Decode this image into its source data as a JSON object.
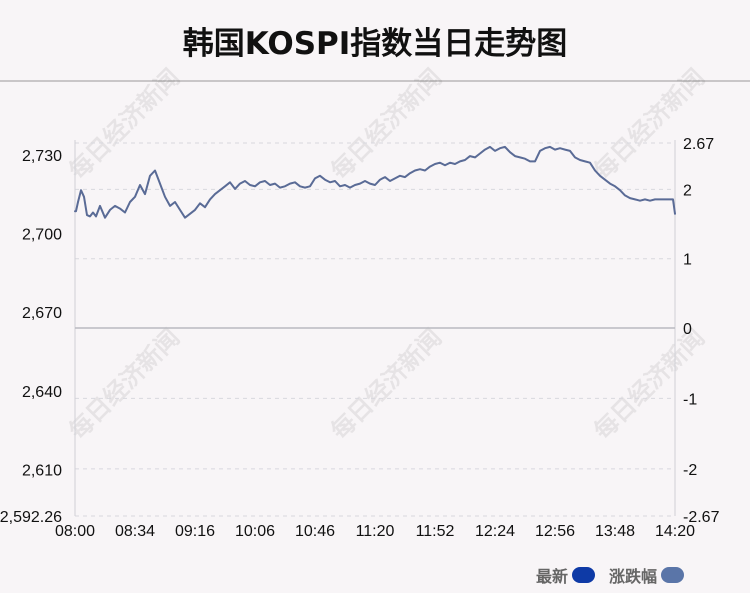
{
  "title": "韩国KOSPI指数当日走势图",
  "watermark": "每日经济新闻",
  "legend": {
    "latest_label": "最新",
    "latest_color": "#0e3aa6",
    "change_label": "涨跌幅",
    "change_color": "#5a75a8"
  },
  "chart_data": {
    "type": "line",
    "title": "韩国KOSPI指数当日走势图",
    "x_ticks": [
      "08:00",
      "08:34",
      "09:16",
      "10:06",
      "10:46",
      "11:20",
      "11:52",
      "12:24",
      "12:56",
      "13:48",
      "14:20"
    ],
    "y_left_ticks": [
      "2,730",
      "2,700",
      "2,670",
      "2,640",
      "2,610",
      "2,592.26"
    ],
    "y_left_values": [
      2730,
      2700,
      2670,
      2640,
      2610,
      2592.26
    ],
    "y_right_ticks": [
      "2.67",
      "2",
      "1",
      "0",
      "-1",
      "-2",
      "-2.67"
    ],
    "y_right_values": [
      2.67,
      2,
      1,
      0,
      -1,
      -2,
      -2.67
    ],
    "ylim": [
      2592.26,
      2734.5
    ],
    "line_color": "#5a6b96",
    "series": [
      {
        "name": "最新",
        "x": [
          0,
          1,
          3,
          6,
          9,
          12,
          15,
          18,
          21,
          25,
          30,
          35,
          40,
          45,
          50,
          55,
          60,
          65,
          70,
          75,
          80,
          85,
          90,
          95,
          100,
          105,
          110,
          115,
          120,
          125,
          130,
          135,
          140,
          145,
          150,
          155,
          160,
          165,
          170,
          175,
          180,
          185,
          190,
          195,
          200,
          205,
          210,
          215,
          220,
          225,
          230,
          235,
          240,
          245,
          250,
          255,
          260,
          265,
          270,
          275,
          280,
          285,
          290,
          295,
          300,
          305,
          310,
          315,
          320,
          325,
          330,
          335,
          340,
          345,
          350,
          355,
          360,
          365,
          370,
          375,
          380,
          385,
          390,
          395,
          400,
          405,
          410,
          415,
          420,
          425,
          430,
          435,
          440,
          445,
          450,
          455,
          460,
          465,
          470,
          475,
          480,
          485,
          490,
          495,
          500,
          505,
          510,
          515,
          520,
          525,
          530,
          535,
          540,
          545,
          550,
          555,
          560,
          565,
          570,
          575,
          580,
          585,
          590,
          595,
          598,
          600
        ],
        "values": [
          2708.5,
          2708.5,
          2712.0,
          2716.5,
          2714.0,
          2707.0,
          2706.5,
          2708.0,
          2706.5,
          2710.5,
          2706.0,
          2709.0,
          2710.5,
          2709.5,
          2708.0,
          2712.0,
          2714.0,
          2718.5,
          2715.0,
          2722.0,
          2724.0,
          2719.0,
          2714.0,
          2710.5,
          2712.0,
          2709.0,
          2706.0,
          2707.5,
          2709.0,
          2711.5,
          2710.0,
          2713.0,
          2715.0,
          2716.5,
          2718.0,
          2719.5,
          2717.0,
          2719.0,
          2720.0,
          2718.5,
          2718.0,
          2719.5,
          2720.0,
          2718.5,
          2719.0,
          2717.5,
          2718.0,
          2719.0,
          2719.5,
          2718.0,
          2717.5,
          2718.0,
          2721.0,
          2722.0,
          2720.5,
          2719.5,
          2720.0,
          2718.0,
          2718.5,
          2717.5,
          2718.5,
          2719.0,
          2720.0,
          2719.0,
          2718.5,
          2720.5,
          2721.5,
          2720.0,
          2721.0,
          2722.0,
          2721.5,
          2723.0,
          2724.0,
          2724.5,
          2724.0,
          2725.5,
          2726.5,
          2727.0,
          2726.0,
          2727.0,
          2726.5,
          2727.5,
          2728.0,
          2729.5,
          2729.0,
          2730.5,
          2732.0,
          2733.0,
          2731.5,
          2732.5,
          2733.0,
          2731.0,
          2729.5,
          2729.0,
          2728.5,
          2727.5,
          2727.5,
          2731.5,
          2732.5,
          2733.0,
          2732.0,
          2732.5,
          2732.0,
          2731.5,
          2729.0,
          2728.0,
          2727.5,
          2727.0,
          2724.0,
          2722.0,
          2720.5,
          2719.0,
          2718.0,
          2716.5,
          2714.5,
          2713.5,
          2713.0,
          2712.5,
          2713.0,
          2712.5,
          2713.0,
          2713.0,
          2713.0,
          2713.0,
          2713.0,
          2707.5
        ]
      }
    ],
    "grid": true,
    "legend_position": "bottom-right"
  }
}
